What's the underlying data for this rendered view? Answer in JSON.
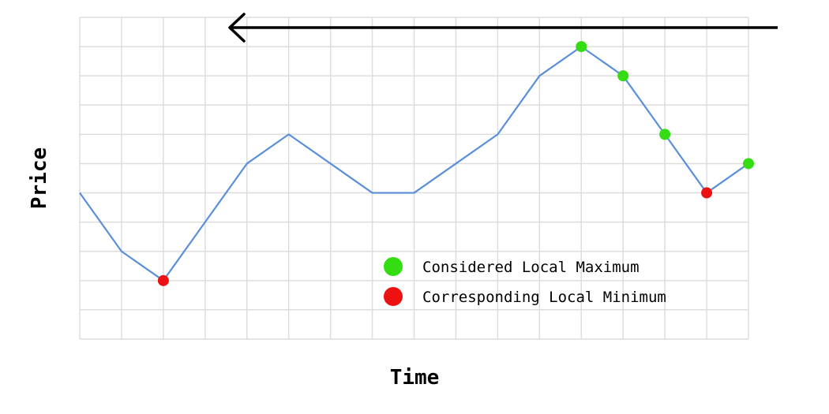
{
  "chart_data": {
    "type": "line",
    "title": "",
    "xlabel": "Time",
    "ylabel": "Price",
    "x": [
      0,
      1,
      2,
      3,
      4,
      5,
      6,
      7,
      8,
      9,
      10,
      11,
      12,
      13,
      14,
      15,
      16
    ],
    "xlim": [
      0,
      16
    ],
    "ylim": [
      0,
      11
    ],
    "grid": true,
    "series": [
      {
        "values": [
          5,
          3,
          2,
          4,
          6,
          7,
          6,
          5,
          5,
          6,
          7,
          9,
          10,
          9,
          7,
          5,
          6
        ],
        "color": "#5b8fd9"
      }
    ],
    "markers": [
      {
        "x": 2,
        "y": 2,
        "kind": "min"
      },
      {
        "x": 12,
        "y": 10,
        "kind": "max"
      },
      {
        "x": 13,
        "y": 9,
        "kind": "max"
      },
      {
        "x": 14,
        "y": 7,
        "kind": "max"
      },
      {
        "x": 15,
        "y": 5,
        "kind": "min"
      },
      {
        "x": 16,
        "y": 6,
        "kind": "max"
      }
    ],
    "legend": {
      "placement": "bottom-right",
      "items": [
        {
          "kind": "max",
          "label": "Considered Local Maximum",
          "color": "#33dd11"
        },
        {
          "kind": "min",
          "label": "Corresponding Local Minimum",
          "color": "#ee1111"
        }
      ]
    },
    "annotation": {
      "shape": "arrow",
      "direction": "left",
      "color": "#000000"
    }
  }
}
